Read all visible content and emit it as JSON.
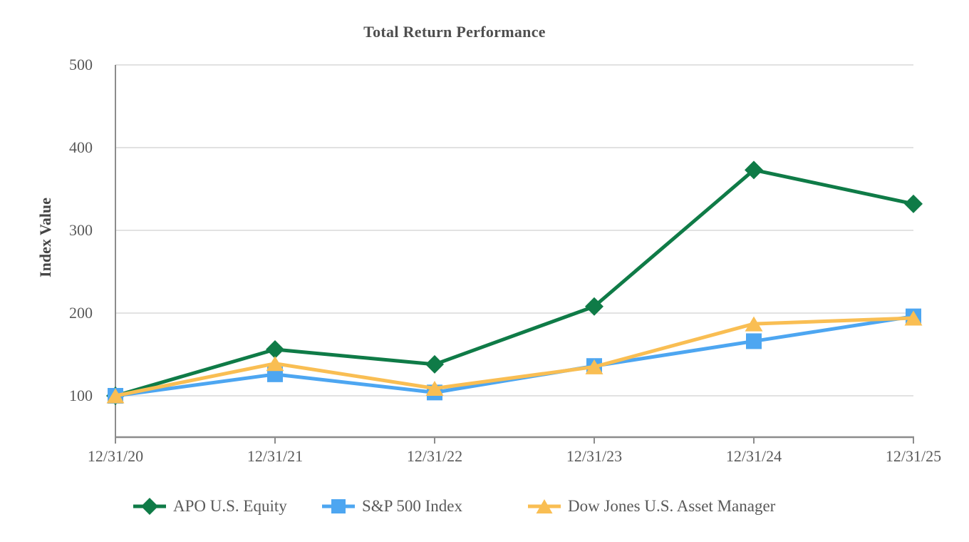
{
  "page": {
    "background": "#FFFFFF"
  },
  "chart_data": {
    "type": "line",
    "title": "Total Return Performance",
    "ylabel": "Index Value",
    "xlabel": "",
    "categories": [
      "12/31/20",
      "12/31/21",
      "12/31/22",
      "12/31/23",
      "12/31/24",
      "12/31/25"
    ],
    "series": [
      {
        "name": "APO U.S. Equity",
        "marker": "diamond",
        "color": "#0F7B47",
        "values": [
          100,
          156,
          138,
          208,
          373,
          332
        ]
      },
      {
        "name": "S&P 500 Index",
        "marker": "square",
        "color": "#4DA6F1",
        "values": [
          100,
          126,
          104,
          136,
          166,
          196
        ]
      },
      {
        "name": "Dow Jones U.S. Asset Manager",
        "marker": "triangle",
        "color": "#F9BE53",
        "values": [
          100,
          139,
          109,
          135,
          187,
          194
        ]
      }
    ],
    "ylim": [
      50,
      500
    ],
    "yticks": [
      100,
      200,
      300,
      400,
      500
    ],
    "grid": true,
    "legend_position": "bottom",
    "axis_color": "#8C8C8C",
    "gridline_color": "#D9D9D9",
    "tick_label_color": "#595959",
    "title_color": "#4F4F4F",
    "axis_title_color": "#454545"
  }
}
